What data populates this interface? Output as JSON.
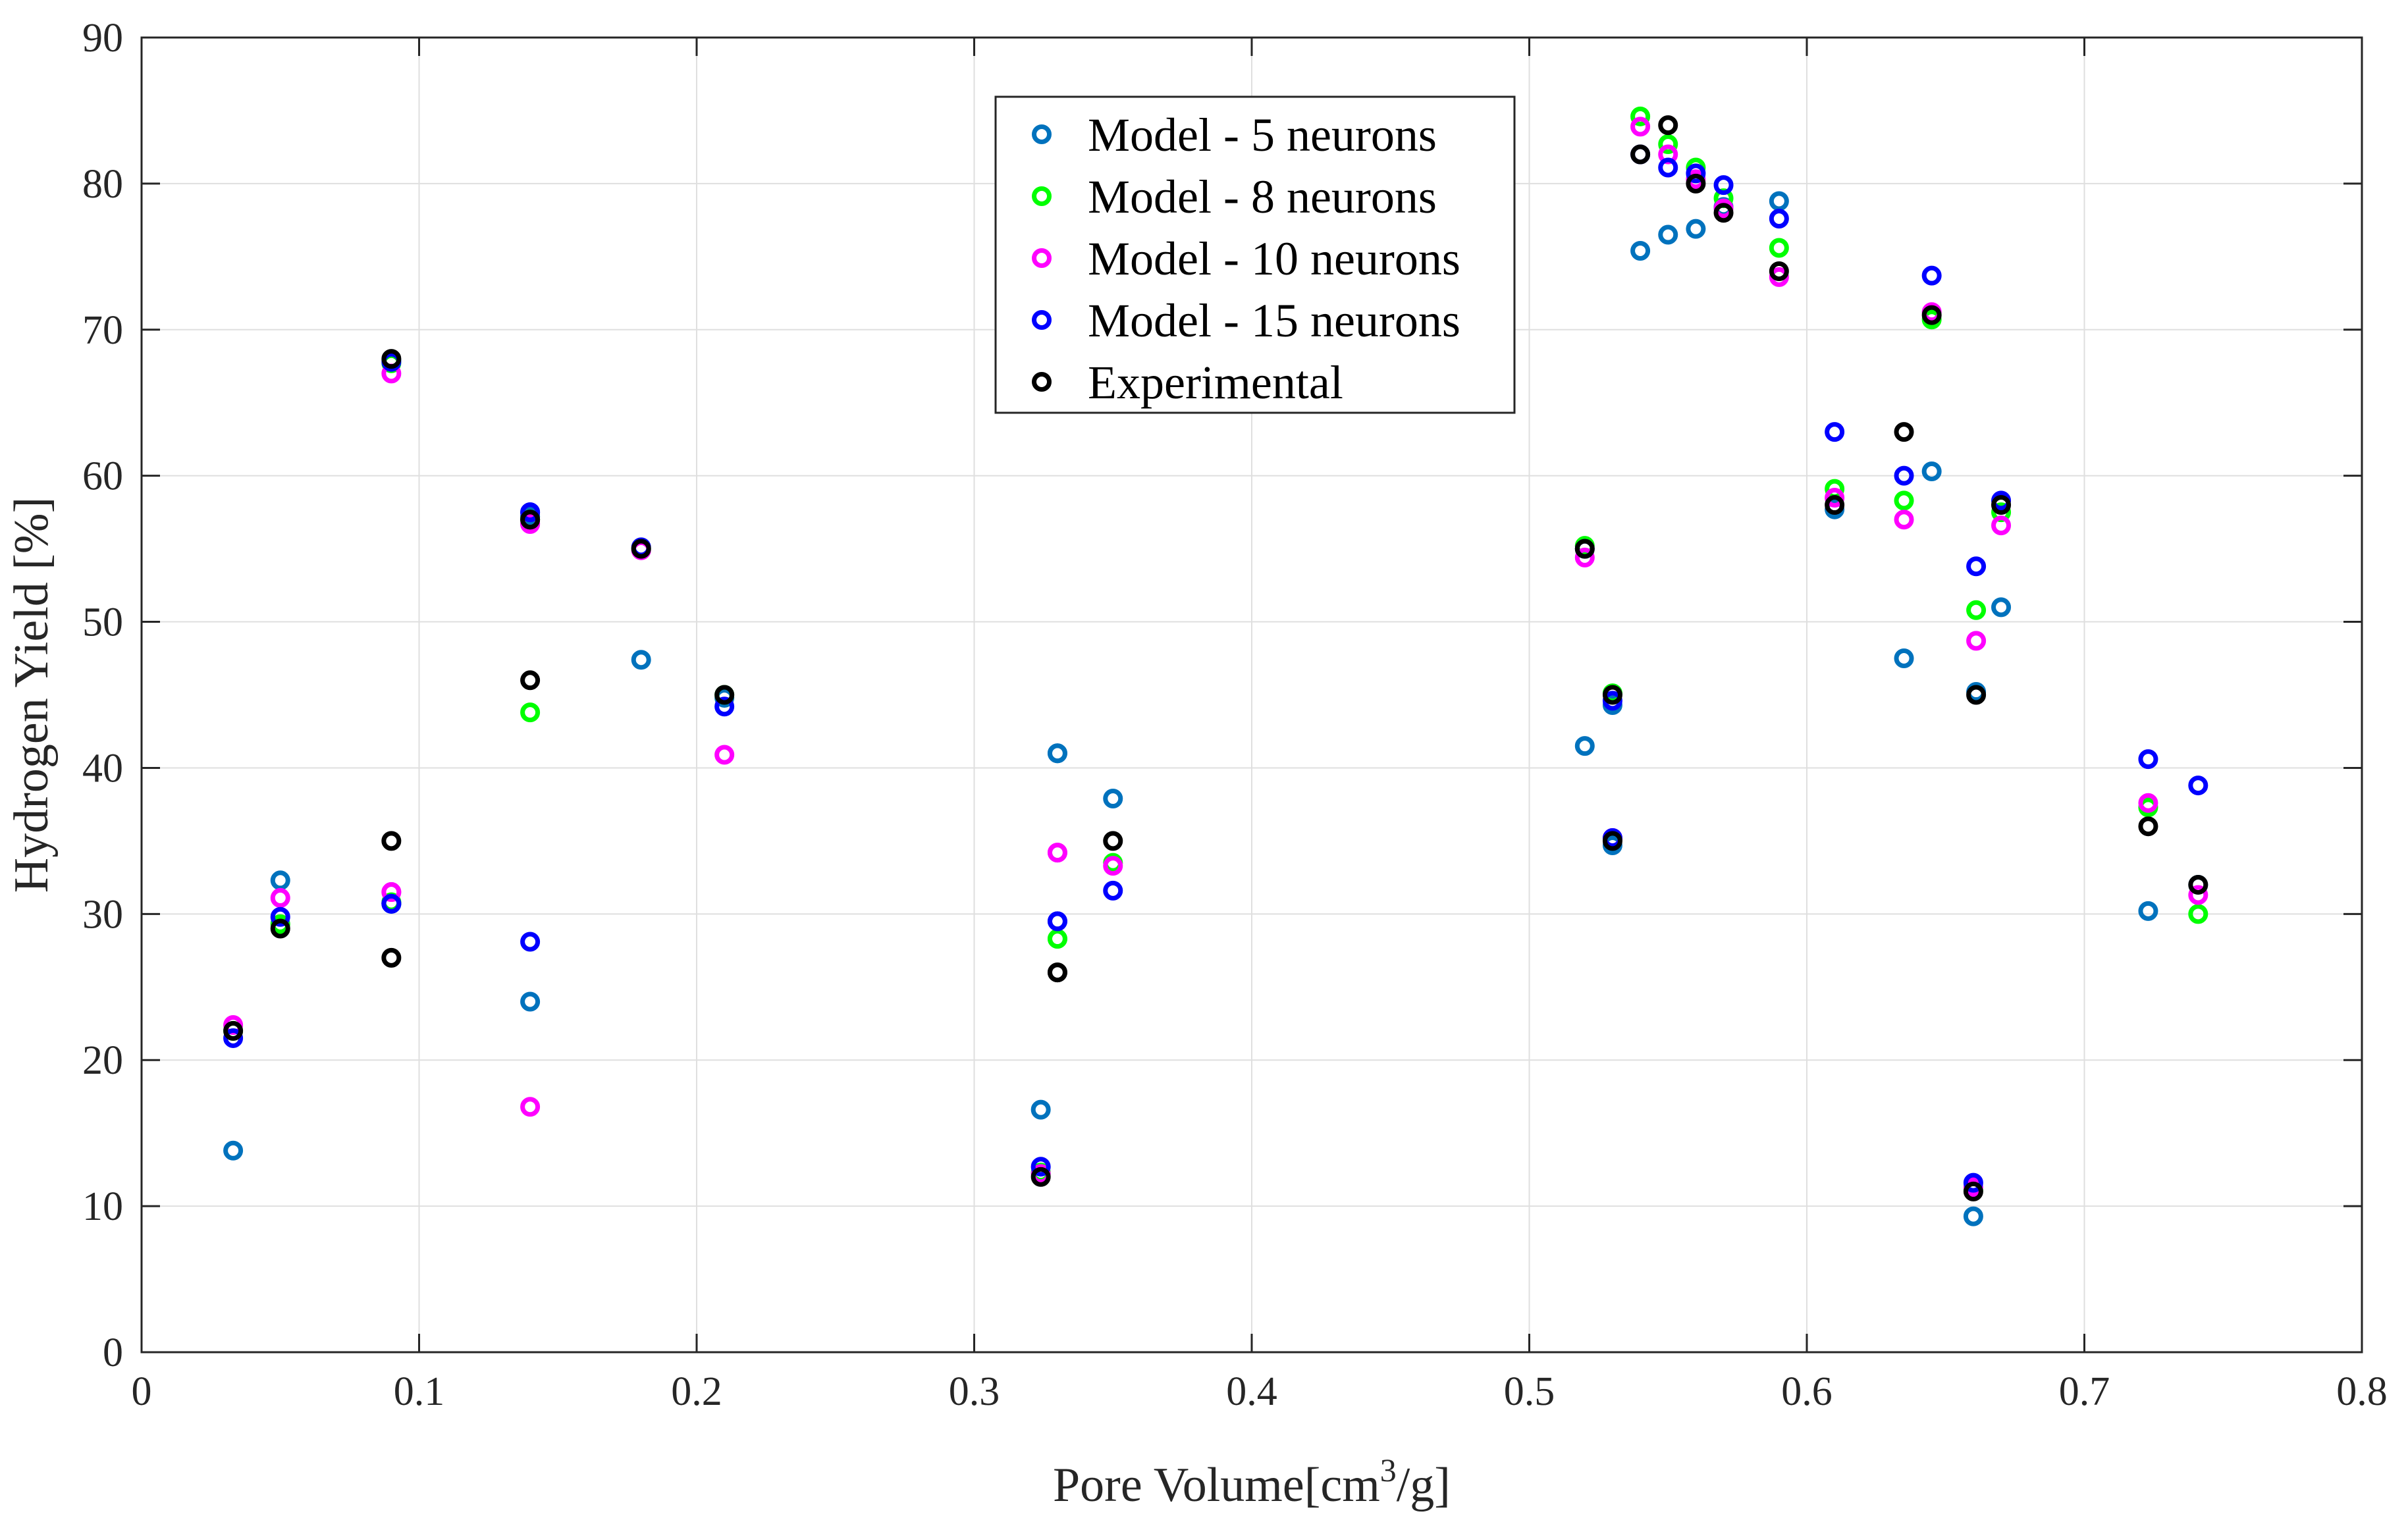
{
  "chart_data": {
    "type": "scatter",
    "title": "",
    "xlabel_main": "Pore Volume[cm",
    "xlabel_sup": "3",
    "xlabel_tail": "/g]",
    "ylabel": "Hydrogen Yield [%]",
    "xlim": [
      0,
      0.8
    ],
    "ylim": [
      0,
      90
    ],
    "xticks": [
      "0",
      "0.1",
      "0.2",
      "0.3",
      "0.4",
      "0.5",
      "0.6",
      "0.7",
      "0.8"
    ],
    "yticks": [
      "0",
      "10",
      "20",
      "30",
      "40",
      "50",
      "60",
      "70",
      "80",
      "90"
    ],
    "grid": true,
    "legend_position": "top-center",
    "x": [
      0.033,
      0.05,
      0.09,
      0.09,
      0.09,
      0.14,
      0.14,
      0.14,
      0.18,
      0.21,
      0.324,
      0.33,
      0.33,
      0.35,
      0.52,
      0.53,
      0.53,
      0.54,
      0.55,
      0.56,
      0.57,
      0.59,
      0.61,
      0.635,
      0.645,
      0.66,
      0.661,
      0.67,
      0.723,
      0.741
    ],
    "series": [
      {
        "name": "Model - 5 neurons",
        "color": "#0072BD",
        "values": [
          13.8,
          32.3,
          67.9,
          30.7,
          30.7,
          24.0,
          57.2,
          57.2,
          47.4,
          44.8,
          16.6,
          41.0,
          41.0,
          37.9,
          41.5,
          34.7,
          44.3,
          75.4,
          76.5,
          76.9,
          78.4,
          78.8,
          57.7,
          47.5,
          60.3,
          9.3,
          45.2,
          51.0,
          30.2,
          32.0
        ]
      },
      {
        "name": "Model - 8 neurons",
        "color": "#00FF00",
        "values": [
          22.0,
          29.3,
          67.7,
          30.8,
          30.8,
          43.8,
          57.0,
          57.0,
          55.0,
          45.0,
          12.3,
          28.3,
          28.3,
          33.5,
          55.2,
          45.1,
          45.1,
          84.6,
          82.7,
          81.1,
          79.0,
          75.6,
          59.1,
          58.3,
          70.7,
          11.1,
          50.8,
          57.5,
          37.3,
          30.0
        ]
      },
      {
        "name": "Model - 10 neurons",
        "color": "#FF00FF",
        "values": [
          22.4,
          31.1,
          67.0,
          31.5,
          31.5,
          16.8,
          56.7,
          56.7,
          54.9,
          40.9,
          12.2,
          34.2,
          34.2,
          33.3,
          54.4,
          35.2,
          35.2,
          83.9,
          82.0,
          80.3,
          78.3,
          73.6,
          58.5,
          57.0,
          71.2,
          11.3,
          48.7,
          56.6,
          37.6,
          31.3
        ]
      },
      {
        "name": "Model - 15 neurons",
        "color": "#0000FF",
        "values": [
          21.5,
          29.8,
          67.8,
          30.7,
          30.7,
          28.1,
          57.5,
          57.5,
          55.1,
          44.2,
          12.7,
          29.5,
          29.5,
          31.6,
          55.0,
          35.2,
          44.6,
          82.0,
          81.1,
          80.7,
          79.9,
          77.6,
          63.0,
          60.0,
          73.7,
          11.6,
          53.8,
          58.3,
          40.6,
          38.8
        ]
      },
      {
        "name": "Experimental",
        "color": "#000000",
        "values": [
          22.0,
          29.0,
          68.0,
          35.0,
          27.0,
          46.0,
          57.0,
          57.0,
          55.0,
          45.0,
          12.0,
          26.0,
          26.0,
          35.0,
          55.0,
          35.0,
          45.0,
          82.0,
          84.0,
          80.0,
          78.0,
          74.0,
          58.0,
          63.0,
          71.0,
          11.0,
          45.0,
          58.0,
          36.0,
          32.0
        ]
      }
    ]
  }
}
